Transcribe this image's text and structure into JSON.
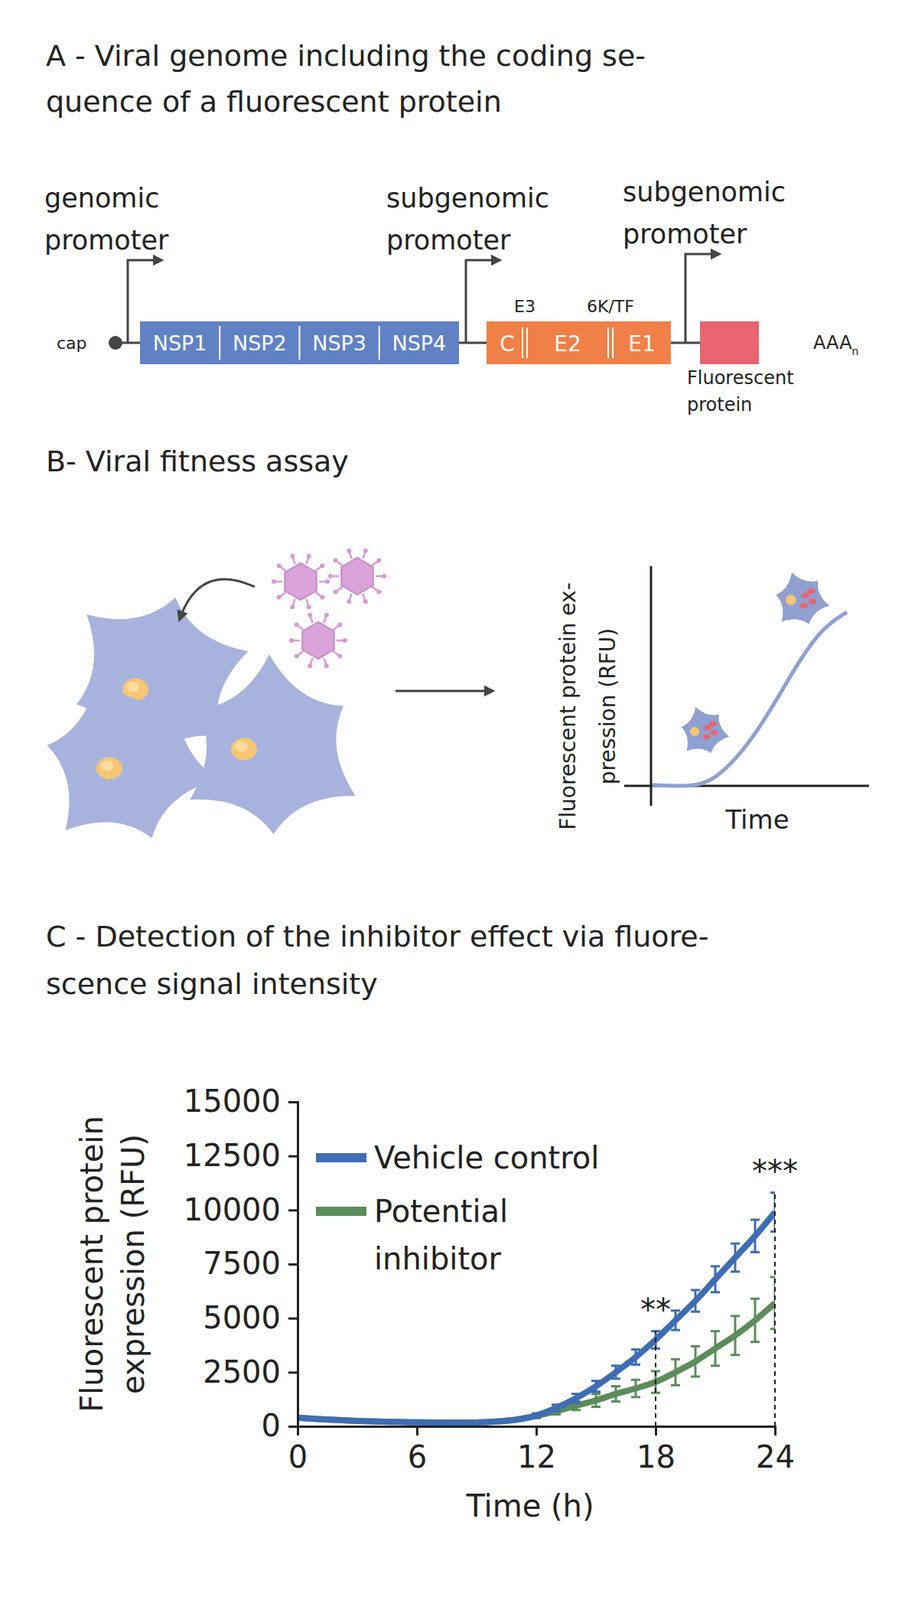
{
  "panels": {
    "a": {
      "title": [
        "A - Viral genome including the coding se-",
        "quence of a fluorescent protein"
      ],
      "cap": "cap",
      "tail": {
        "text": "AAA",
        "sub": "n"
      },
      "promoters": [
        {
          "lines": [
            "genomic",
            "promoter"
          ]
        },
        {
          "lines": [
            "subgenomic",
            "promoter"
          ]
        },
        {
          "lines": [
            "subgenomic",
            "promoter"
          ]
        }
      ],
      "nonstructural": [
        "NSP1",
        "NSP2",
        "NSP3",
        "NSP4"
      ],
      "structural": [
        "C",
        "E2",
        "E1"
      ],
      "structural_labels": [
        "E3",
        "6K/TF"
      ],
      "reporter": [
        "Fluorescent",
        "protein"
      ]
    },
    "b": {
      "title": "B- Viral fitness assay",
      "y_label": [
        "Fluorescent protein ex-",
        "pression (RFU)"
      ],
      "x_label": "Time"
    },
    "c": {
      "title": [
        "C - Detection of the inhibitor effect via fluore-",
        "scence signal intensity"
      ]
    }
  },
  "chart_data": {
    "type": "line",
    "x_label": "Time (h)",
    "y_label": [
      "Fluorescent protein",
      "expression (RFU)"
    ],
    "x": [
      0,
      1,
      2,
      3,
      4,
      5,
      6,
      7,
      8,
      9,
      10,
      11,
      12,
      13,
      14,
      15,
      16,
      17,
      18,
      19,
      20,
      21,
      22,
      23,
      24
    ],
    "series": [
      {
        "name": "Vehicle control",
        "color": "#3e6db3",
        "values": [
          400,
          340,
          290,
          250,
          220,
          200,
          185,
          175,
          170,
          180,
          220,
          310,
          500,
          850,
          1300,
          1850,
          2500,
          3200,
          4000,
          4900,
          5800,
          6800,
          7800,
          8800,
          9900
        ],
        "errors": [
          60,
          50,
          40,
          40,
          30,
          30,
          30,
          30,
          30,
          30,
          40,
          50,
          100,
          150,
          200,
          250,
          300,
          350,
          400,
          450,
          500,
          600,
          650,
          750,
          900
        ]
      },
      {
        "name": "Potential inhibitor",
        "color": "#5b8c5a",
        "values": [
          400,
          340,
          290,
          250,
          220,
          200,
          185,
          175,
          170,
          180,
          220,
          310,
          480,
          700,
          950,
          1200,
          1500,
          1750,
          2050,
          2500,
          3000,
          3600,
          4200,
          4900,
          5700
        ],
        "errors": [
          60,
          50,
          40,
          40,
          30,
          30,
          30,
          30,
          30,
          30,
          40,
          50,
          100,
          150,
          200,
          300,
          350,
          400,
          500,
          600,
          700,
          800,
          900,
          1000,
          1200
        ]
      }
    ],
    "xlim": [
      0,
      24
    ],
    "ylim": [
      0,
      15000
    ],
    "xticks": [
      0,
      6,
      12,
      18,
      24
    ],
    "yticks": [
      0,
      2500,
      5000,
      7500,
      10000,
      12500,
      15000
    ],
    "annotations": [
      {
        "text": "**",
        "x": 18
      },
      {
        "text": "***",
        "x": 24
      }
    ],
    "legend": "top-left",
    "grid": false
  }
}
